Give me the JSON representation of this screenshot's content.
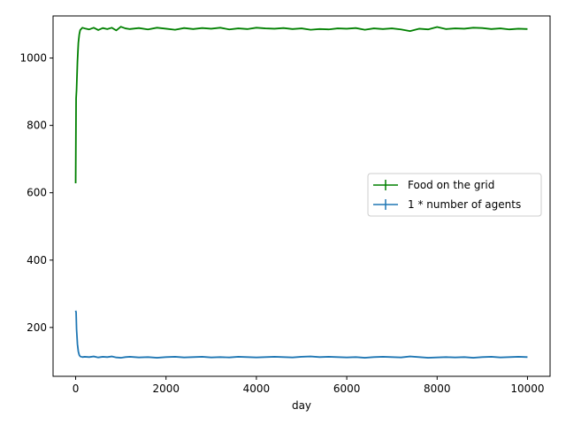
{
  "chart_data": {
    "type": "line",
    "title": "",
    "xlabel": "day",
    "ylabel": "",
    "xlim": [
      -500,
      10500
    ],
    "ylim": [
      55,
      1125
    ],
    "x_ticks": [
      0,
      2000,
      4000,
      6000,
      8000,
      10000
    ],
    "y_ticks": [
      200,
      400,
      600,
      800,
      1000
    ],
    "x_tick_labels": [
      "0",
      "2000",
      "4000",
      "6000",
      "8000",
      "10000"
    ],
    "y_tick_labels": [
      "200",
      "400",
      "600",
      "800",
      "1000"
    ],
    "grid": false,
    "legend_position": "center-right",
    "series": [
      {
        "name": "Food on the grid",
        "color": "#008000",
        "x": [
          0,
          10,
          20,
          40,
          60,
          80,
          100,
          150,
          200,
          300,
          400,
          500,
          600,
          700,
          800,
          900,
          1000,
          1100,
          1200,
          1400,
          1600,
          1800,
          2000,
          2200,
          2400,
          2600,
          2800,
          3000,
          3200,
          3400,
          3600,
          3800,
          4000,
          4200,
          4400,
          4600,
          4800,
          5000,
          5200,
          5400,
          5600,
          5800,
          6000,
          6200,
          6400,
          6600,
          6800,
          7000,
          7200,
          7400,
          7600,
          7800,
          8000,
          8200,
          8400,
          8600,
          8800,
          9000,
          9200,
          9400,
          9600,
          9800,
          10000
        ],
        "values": [
          628,
          880,
          905,
          990,
          1045,
          1070,
          1083,
          1090,
          1088,
          1085,
          1090,
          1083,
          1089,
          1086,
          1090,
          1082,
          1093,
          1088,
          1086,
          1089,
          1085,
          1090,
          1087,
          1084,
          1089,
          1086,
          1089,
          1087,
          1090,
          1085,
          1088,
          1086,
          1090,
          1088,
          1087,
          1089,
          1086,
          1088,
          1084,
          1086,
          1085,
          1088,
          1087,
          1089,
          1084,
          1088,
          1086,
          1088,
          1085,
          1080,
          1087,
          1085,
          1092,
          1086,
          1088,
          1087,
          1090,
          1089,
          1086,
          1088,
          1085,
          1087,
          1086
        ]
      },
      {
        "name": "1 * number of agents",
        "color": "#1f77b4",
        "x": [
          0,
          10,
          20,
          40,
          60,
          80,
          100,
          150,
          200,
          300,
          400,
          500,
          600,
          700,
          800,
          900,
          1000,
          1100,
          1200,
          1400,
          1600,
          1800,
          2000,
          2200,
          2400,
          2600,
          2800,
          3000,
          3200,
          3400,
          3600,
          3800,
          4000,
          4200,
          4400,
          4600,
          4800,
          5000,
          5200,
          5400,
          5600,
          5800,
          6000,
          6200,
          6400,
          6600,
          6800,
          7000,
          7200,
          7400,
          7600,
          7800,
          8000,
          8200,
          8400,
          8600,
          8800,
          9000,
          9200,
          9400,
          9600,
          9800,
          10000
        ],
        "values": [
          250,
          245,
          195,
          150,
          128,
          118,
          114,
          112,
          113,
          112,
          114,
          111,
          113,
          112,
          114,
          111,
          110,
          112,
          113,
          111,
          112,
          110,
          112,
          113,
          111,
          112,
          113,
          111,
          112,
          111,
          113,
          112,
          111,
          112,
          113,
          112,
          111,
          113,
          114,
          112,
          113,
          112,
          111,
          112,
          110,
          112,
          113,
          112,
          111,
          114,
          112,
          110,
          111,
          112,
          111,
          112,
          110,
          112,
          113,
          111,
          112,
          113,
          112
        ]
      }
    ]
  }
}
